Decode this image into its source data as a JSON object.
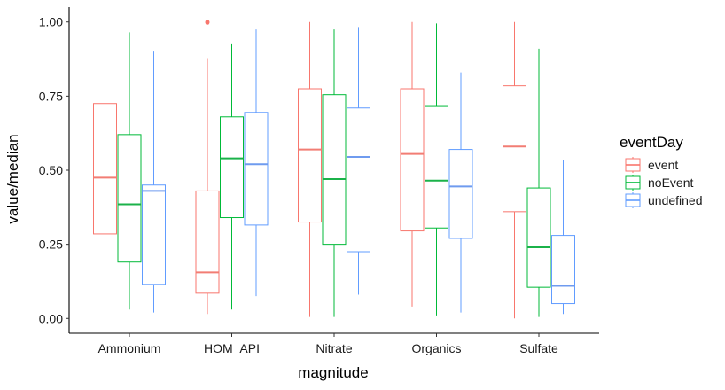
{
  "chart_data": {
    "type": "boxplot",
    "xlabel": "magnitude",
    "ylabel": "value/median",
    "ylim": [
      -0.05,
      1.05
    ],
    "y_ticks": [
      0.0,
      0.25,
      0.5,
      0.75,
      1.0
    ],
    "y_tick_labels": [
      "0.00",
      "0.25",
      "0.50",
      "0.75",
      "1.00"
    ],
    "categories": [
      "Ammonium",
      "HOM_API",
      "Nitrate",
      "Organics",
      "Sulfate"
    ],
    "grid": false,
    "legend": {
      "title": "eventDay",
      "position": "right",
      "entries": [
        "event",
        "noEvent",
        "undefined"
      ]
    },
    "series": [
      {
        "name": "event",
        "color": "#F8766D",
        "boxes": [
          {
            "min": 0.005,
            "q1": 0.285,
            "median": 0.475,
            "q3": 0.725,
            "max": 1.0,
            "outliers": []
          },
          {
            "min": 0.015,
            "q1": 0.085,
            "median": 0.155,
            "q3": 0.43,
            "max": 0.875,
            "outliers": [
              0.998,
              1.0
            ]
          },
          {
            "min": 0.005,
            "q1": 0.325,
            "median": 0.57,
            "q3": 0.775,
            "max": 1.0,
            "outliers": []
          },
          {
            "min": 0.04,
            "q1": 0.295,
            "median": 0.555,
            "q3": 0.775,
            "max": 1.0,
            "outliers": []
          },
          {
            "min": 0.0,
            "q1": 0.36,
            "median": 0.58,
            "q3": 0.785,
            "max": 1.0,
            "outliers": []
          }
        ]
      },
      {
        "name": "noEvent",
        "color": "#00BA38",
        "boxes": [
          {
            "min": 0.03,
            "q1": 0.19,
            "median": 0.385,
            "q3": 0.62,
            "max": 0.965,
            "outliers": []
          },
          {
            "min": 0.03,
            "q1": 0.34,
            "median": 0.54,
            "q3": 0.68,
            "max": 0.925,
            "outliers": []
          },
          {
            "min": 0.005,
            "q1": 0.25,
            "median": 0.47,
            "q3": 0.755,
            "max": 0.975,
            "outliers": []
          },
          {
            "min": 0.01,
            "q1": 0.305,
            "median": 0.465,
            "q3": 0.715,
            "max": 0.995,
            "outliers": []
          },
          {
            "min": 0.005,
            "q1": 0.105,
            "median": 0.24,
            "q3": 0.44,
            "max": 0.91,
            "outliers": []
          }
        ]
      },
      {
        "name": "undefined",
        "color": "#619CFF",
        "boxes": [
          {
            "min": 0.02,
            "q1": 0.115,
            "median": 0.43,
            "q3": 0.45,
            "max": 0.9,
            "outliers": []
          },
          {
            "min": 0.075,
            "q1": 0.315,
            "median": 0.52,
            "q3": 0.695,
            "max": 0.975,
            "outliers": []
          },
          {
            "min": 0.08,
            "q1": 0.225,
            "median": 0.545,
            "q3": 0.71,
            "max": 0.98,
            "outliers": []
          },
          {
            "min": 0.02,
            "q1": 0.27,
            "median": 0.445,
            "q3": 0.57,
            "max": 0.83,
            "outliers": []
          },
          {
            "min": 0.015,
            "q1": 0.05,
            "median": 0.11,
            "q3": 0.28,
            "max": 0.535,
            "outliers": []
          }
        ]
      }
    ]
  }
}
